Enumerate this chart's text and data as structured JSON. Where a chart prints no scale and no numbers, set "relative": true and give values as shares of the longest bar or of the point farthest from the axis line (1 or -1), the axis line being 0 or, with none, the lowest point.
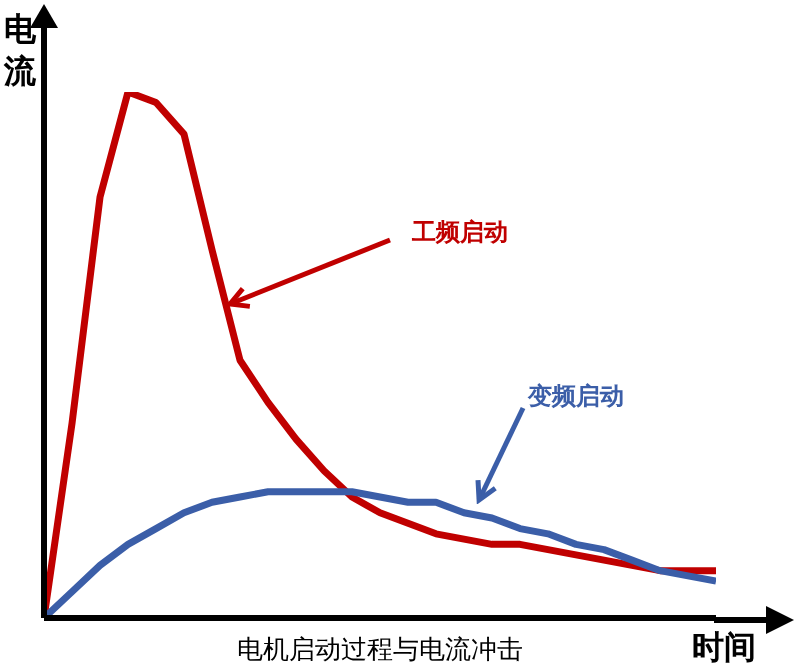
{
  "chart_data": {
    "type": "line",
    "title": "电机启动过程与电流冲击",
    "xlabel": "时间",
    "ylabel": "电流",
    "relative": true,
    "grid": false,
    "legend": false,
    "marker": "none",
    "line_style": "solid",
    "categories": [
      null,
      null,
      null,
      null,
      null,
      null,
      null,
      null,
      null,
      null,
      null,
      null,
      null,
      null,
      null,
      null,
      null,
      null,
      null,
      null,
      null,
      null,
      null,
      null,
      null
    ],
    "series": [
      {
        "name": "工频启动",
        "color": "#c00000",
        "values": [
          0,
          0.37,
          0.8,
          1,
          0.98,
          0.92,
          0.7,
          0.49,
          0.41,
          0.34,
          0.28,
          0.23,
          0.2,
          0.18,
          0.16,
          0.15,
          0.14,
          0.14,
          0.13,
          0.12,
          0.11,
          0.1,
          0.09,
          0.09,
          0.09
        ]
      },
      {
        "name": "变频启动",
        "color": "#3b5ea8",
        "values": [
          0,
          0.05,
          0.1,
          0.14,
          0.17,
          0.2,
          0.22,
          0.23,
          0.24,
          0.24,
          0.24,
          0.24,
          0.23,
          0.22,
          0.22,
          0.2,
          0.19,
          0.17,
          0.16,
          0.14,
          0.13,
          0.11,
          0.09,
          0.08,
          0.07
        ]
      }
    ]
  }
}
